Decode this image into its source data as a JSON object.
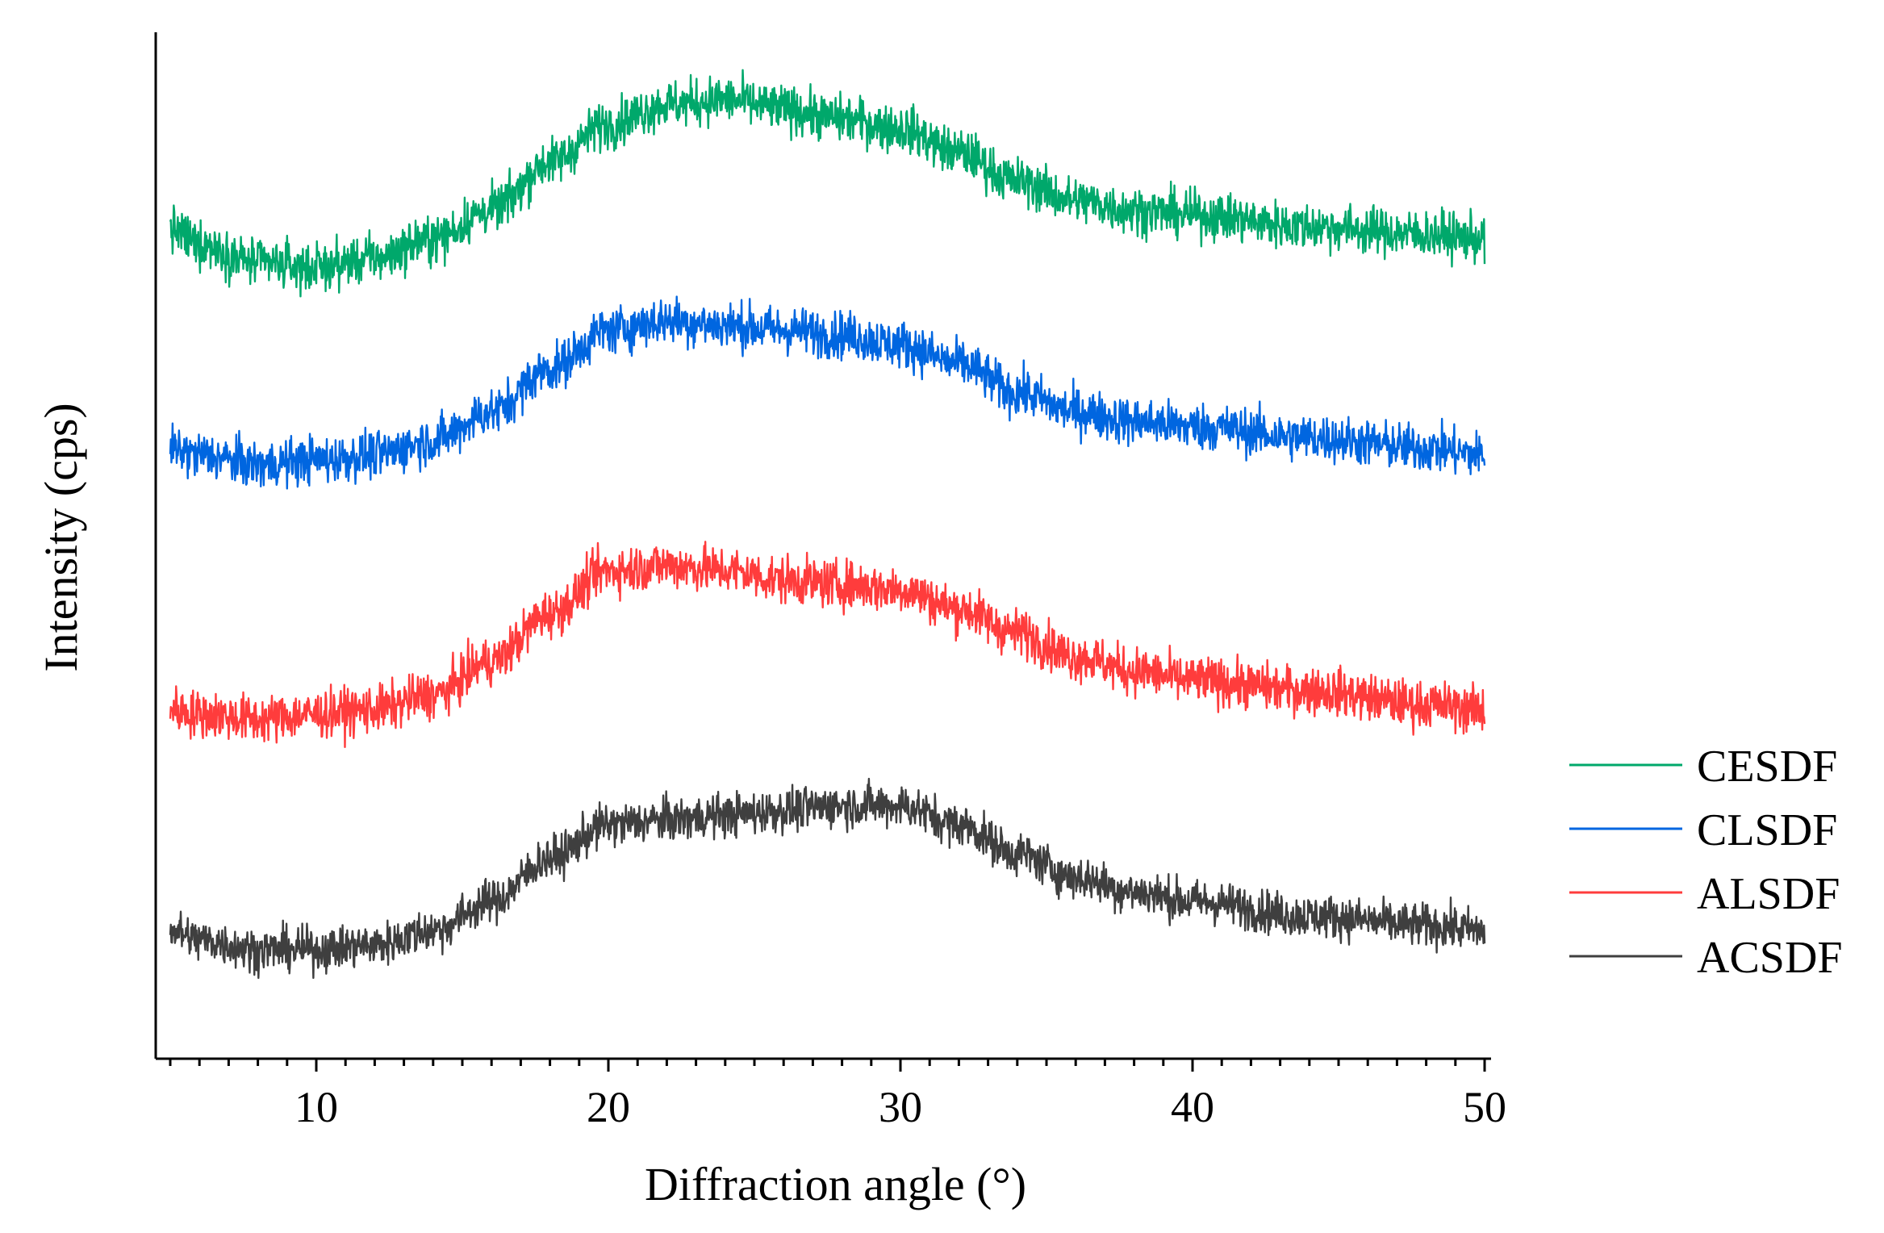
{
  "chart_data": {
    "type": "line",
    "title": "",
    "xlabel": "Diffraction angle (°)",
    "ylabel": "Intensity (cps)",
    "xlim": [
      5,
      50
    ],
    "ylim": [
      0,
      100
    ],
    "x_ticks": [
      10,
      20,
      30,
      40,
      50
    ],
    "x_minor_step": 1,
    "y_ticks": [],
    "grid": false,
    "legend_position": "right",
    "series": [
      {
        "name": "CESDF",
        "color": "#00a86b",
        "noise": 2.2,
        "anchors": [
          [
            5,
            82
          ],
          [
            6,
            80.5
          ],
          [
            8,
            78.5
          ],
          [
            10,
            78
          ],
          [
            12,
            79
          ],
          [
            14,
            81
          ],
          [
            16,
            84
          ],
          [
            18,
            89
          ],
          [
            20,
            93
          ],
          [
            22,
            95
          ],
          [
            24,
            95.5
          ],
          [
            26,
            94.5
          ],
          [
            28,
            93.5
          ],
          [
            30,
            92.5
          ],
          [
            32,
            90
          ],
          [
            34,
            87
          ],
          [
            36,
            85
          ],
          [
            38,
            84
          ],
          [
            40,
            83.5
          ],
          [
            44,
            82.3
          ],
          [
            48,
            81.5
          ],
          [
            50,
            81
          ]
        ]
      },
      {
        "name": "CLSDF",
        "color": "#0066e0",
        "noise": 2.2,
        "anchors": [
          [
            5,
            59
          ],
          [
            6,
            58.5
          ],
          [
            8,
            57.5
          ],
          [
            10,
            58
          ],
          [
            12,
            58.5
          ],
          [
            14,
            60
          ],
          [
            16,
            63
          ],
          [
            18,
            67.5
          ],
          [
            20,
            71.5
          ],
          [
            22,
            72.5
          ],
          [
            24,
            72
          ],
          [
            26,
            71.5
          ],
          [
            28,
            71
          ],
          [
            30,
            70
          ],
          [
            32,
            68
          ],
          [
            34,
            65
          ],
          [
            36,
            63
          ],
          [
            38,
            62
          ],
          [
            40,
            61.5
          ],
          [
            44,
            60.3
          ],
          [
            48,
            59.2
          ],
          [
            50,
            58.5
          ]
        ]
      },
      {
        "name": "ALSDF",
        "color": "#ff3c3c",
        "noise": 2.2,
        "anchors": [
          [
            5,
            32
          ],
          [
            6,
            31.5
          ],
          [
            8,
            31
          ],
          [
            10,
            31.5
          ],
          [
            12,
            32
          ],
          [
            14,
            33.5
          ],
          [
            16,
            37
          ],
          [
            18,
            42
          ],
          [
            20,
            46.5
          ],
          [
            22,
            47
          ],
          [
            24,
            46.5
          ],
          [
            26,
            45.5
          ],
          [
            28,
            45
          ],
          [
            30,
            44.5
          ],
          [
            32,
            42.5
          ],
          [
            34,
            40
          ],
          [
            36,
            37.5
          ],
          [
            38,
            36
          ],
          [
            40,
            35
          ],
          [
            44,
            34
          ],
          [
            48,
            32.5
          ],
          [
            50,
            32
          ]
        ]
      },
      {
        "name": "ACSDF",
        "color": "#3f3f3f",
        "noise": 2.0,
        "anchors": [
          [
            5,
            9
          ],
          [
            6,
            8
          ],
          [
            8,
            7
          ],
          [
            10,
            7
          ],
          [
            12,
            7.5
          ],
          [
            14,
            9
          ],
          [
            16,
            12
          ],
          [
            18,
            16.5
          ],
          [
            20,
            20
          ],
          [
            22,
            20.5
          ],
          [
            24,
            21
          ],
          [
            26,
            21.5
          ],
          [
            28,
            22
          ],
          [
            30,
            22
          ],
          [
            32,
            20
          ],
          [
            34,
            17
          ],
          [
            36,
            14.5
          ],
          [
            38,
            13
          ],
          [
            40,
            12
          ],
          [
            44,
            10.5
          ],
          [
            48,
            9.5
          ],
          [
            50,
            9
          ]
        ]
      }
    ]
  }
}
